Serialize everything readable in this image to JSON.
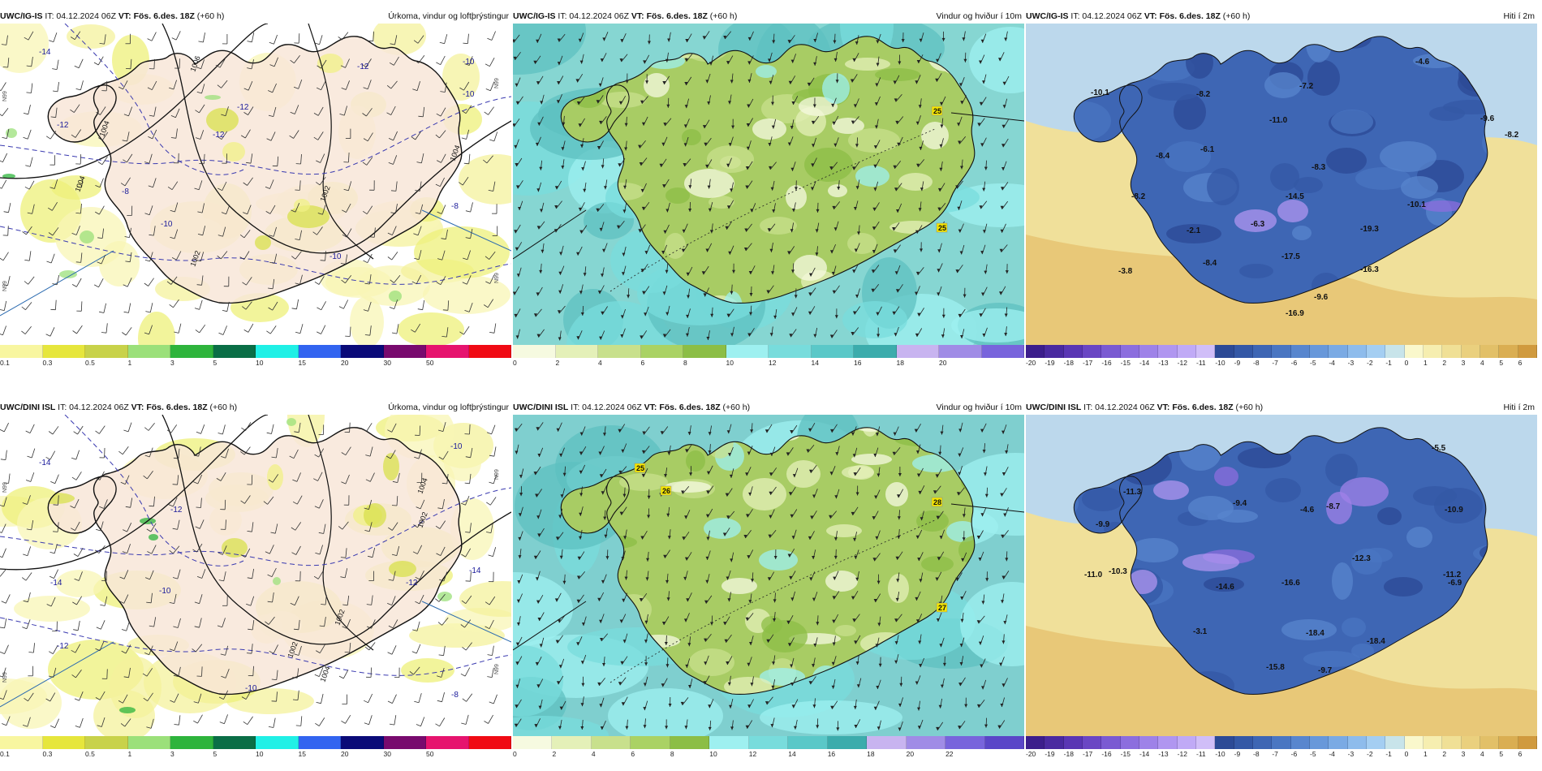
{
  "rows": [
    {
      "panels": [
        {
          "model": "UWC/IG-IS",
          "it": "IT: 04.12.2024 06Z",
          "vt": "VT: Fös. 6.des. 18Z",
          "lead": "(+60 h)",
          "title": "Úrkoma, vindur og loftþrýstingur",
          "type": "precip",
          "isobar_labels": [
            "1004",
            "1006",
            "1004",
            "1002",
            "1002",
            "1004"
          ],
          "temp_labels": [
            "-14",
            "-12",
            "-12",
            "-12",
            "-10",
            "-10",
            "-8",
            "-10",
            "-8",
            "-10",
            "-12"
          ],
          "side_labels": [
            "N99",
            "N99",
            "N99",
            "N99"
          ],
          "colorbar": {
            "ticks": [
              "0.1",
              "0.3",
              "0.5",
              "1",
              "3",
              "5",
              "10",
              "15",
              "20",
              "30",
              "50"
            ],
            "colors": [
              "#f8f6a0",
              "#e6e63c",
              "#c8d24a",
              "#9be07a",
              "#2eb43c",
              "#0a6e46",
              "#20f0e6",
              "#3264f0",
              "#0a0a78",
              "#780a6e",
              "#e6146e",
              "#f00a14"
            ]
          }
        },
        {
          "model": "UWC/IG-IS",
          "it": "IT: 04.12.2024 06Z",
          "vt": "VT: Fös. 6.des. 18Z",
          "lead": "(+60 h)",
          "title": "Vindur og hviður í 10m",
          "type": "wind",
          "gust_labels": [
            "25",
            "25"
          ],
          "colorbar": {
            "ticks": [
              "0",
              "2",
              "4",
              "6",
              "8",
              "10",
              "12",
              "14",
              "16",
              "18",
              "20"
            ],
            "colors": [
              "#f6fae0",
              "#e4f0b8",
              "#c8e08c",
              "#aad264",
              "#8cbe46",
              "#9ef0f0",
              "#78dcdc",
              "#5ac8c8",
              "#3cacac",
              "#c8b4f0",
              "#a08ce6",
              "#7864dc"
            ]
          }
        },
        {
          "model": "UWC/IG-IS",
          "it": "IT: 04.12.2024 06Z",
          "vt": "VT: Fös. 6.des. 18Z",
          "lead": "(+60 h)",
          "title": "Hiti í 2m",
          "type": "temp",
          "temp_labels": [
            "-10.1",
            "-8.2",
            "-7.2",
            "-4.6",
            "-11.0",
            "-9.6",
            "-6.1",
            "-8.4",
            "-8.2",
            "-8.3",
            "-8.2",
            "-14.5",
            "-10.1",
            "-6.3",
            "-2.1",
            "-19.3",
            "-17.5",
            "-8.4",
            "-16.3",
            "-3.8",
            "-9.6",
            "-16.9"
          ],
          "colorbar": {
            "ticks": [
              "-20",
              "-19",
              "-18",
              "-17",
              "-16",
              "-15",
              "-14",
              "-13",
              "-12",
              "-11",
              "-10",
              "-9",
              "-8",
              "-7",
              "-6",
              "-5",
              "-4",
              "-3",
              "-2",
              "-1",
              "0",
              "1",
              "2",
              "3",
              "4",
              "5",
              "6"
            ],
            "colors": [
              "#3c1e8c",
              "#4a2aa0",
              "#5a36b4",
              "#6a46c4",
              "#7a5ad2",
              "#8c6ede",
              "#9e82e8",
              "#b096f0",
              "#c0aaf6",
              "#d0bef8",
              "#2c4a96",
              "#3458a6",
              "#3e66b4",
              "#4a76c2",
              "#5886ce",
              "#6898da",
              "#7aaae4",
              "#8ebcec",
              "#a4cef2",
              "#c8e4ea",
              "#faf8cc",
              "#f6eeb0",
              "#f0e096",
              "#ead07e",
              "#e2c068",
              "#daae52",
              "#d09a3e"
            ]
          }
        }
      ]
    },
    {
      "panels": [
        {
          "model": "UWC/DINI ISL",
          "it": "IT: 04.12.2024 06Z",
          "vt": "VT: Fös. 6.des. 18Z",
          "lead": "(+60 h)",
          "title": "Úrkoma, vindur og loftþrýstingur",
          "type": "precip",
          "isobar_labels": [
            "1004",
            "1002",
            "1002",
            "1004",
            "1002"
          ],
          "temp_labels": [
            "-14",
            "-10",
            "-12",
            "-14",
            "-12",
            "-10",
            "-12",
            "-10",
            "-8",
            "-14"
          ],
          "side_labels": [
            "N99",
            "N99",
            "N99",
            "N99"
          ],
          "colorbar": {
            "ticks": [
              "0.1",
              "0.3",
              "0.5",
              "1",
              "3",
              "5",
              "10",
              "15",
              "20",
              "30",
              "50"
            ],
            "colors": [
              "#f8f6a0",
              "#e6e63c",
              "#c8d24a",
              "#9be07a",
              "#2eb43c",
              "#0a6e46",
              "#20f0e6",
              "#3264f0",
              "#0a0a78",
              "#780a6e",
              "#e6146e",
              "#f00a14"
            ]
          }
        },
        {
          "model": "UWC/DINI ISL",
          "it": "IT: 04.12.2024 06Z",
          "vt": "VT: Fös. 6.des. 18Z",
          "lead": "(+60 h)",
          "title": "Vindur og hviður í 10m",
          "type": "wind",
          "gust_labels": [
            "25",
            "26",
            "28",
            "27"
          ],
          "colorbar": {
            "ticks": [
              "0",
              "2",
              "4",
              "6",
              "8",
              "10",
              "12",
              "14",
              "16",
              "18",
              "20",
              "22"
            ],
            "colors": [
              "#f6fae0",
              "#e4f0b8",
              "#c8e08c",
              "#aad264",
              "#8cbe46",
              "#9ef0f0",
              "#78dcdc",
              "#5ac8c8",
              "#3cacac",
              "#c8b4f0",
              "#a08ce6",
              "#7864dc",
              "#5a46c8"
            ]
          }
        },
        {
          "model": "UWC/DINI ISL",
          "it": "IT: 04.12.2024 06Z",
          "vt": "VT: Fös. 6.des. 18Z",
          "lead": "(+60 h)",
          "title": "Hiti í 2m",
          "type": "temp",
          "temp_labels": [
            "-5.5",
            "-11.3",
            "-9.4",
            "-4.6",
            "-8.7",
            "-9.9",
            "-10.9",
            "-12.3",
            "-10.3",
            "-11.0",
            "-11.2",
            "-6.9",
            "-14.6",
            "-16.6",
            "-3.1",
            "-18.4",
            "-18.4",
            "-15.8",
            "-9.7"
          ],
          "colorbar": {
            "ticks": [
              "-20",
              "-19",
              "-18",
              "-17",
              "-16",
              "-15",
              "-14",
              "-13",
              "-12",
              "-11",
              "-10",
              "-9",
              "-8",
              "-7",
              "-6",
              "-5",
              "-4",
              "-3",
              "-2",
              "-1",
              "0",
              "1",
              "2",
              "3",
              "4",
              "5",
              "6"
            ],
            "colors": [
              "#3c1e8c",
              "#4a2aa0",
              "#5a36b4",
              "#6a46c4",
              "#7a5ad2",
              "#8c6ede",
              "#9e82e8",
              "#b096f0",
              "#c0aaf6",
              "#d0bef8",
              "#2c4a96",
              "#3458a6",
              "#3e66b4",
              "#4a76c2",
              "#5886ce",
              "#6898da",
              "#7aaae4",
              "#8ebcec",
              "#a4cef2",
              "#c8e4ea",
              "#faf8cc",
              "#f6eeb0",
              "#f0e096",
              "#ead07e",
              "#e2c068",
              "#daae52",
              "#d09a3e"
            ]
          }
        }
      ]
    }
  ]
}
